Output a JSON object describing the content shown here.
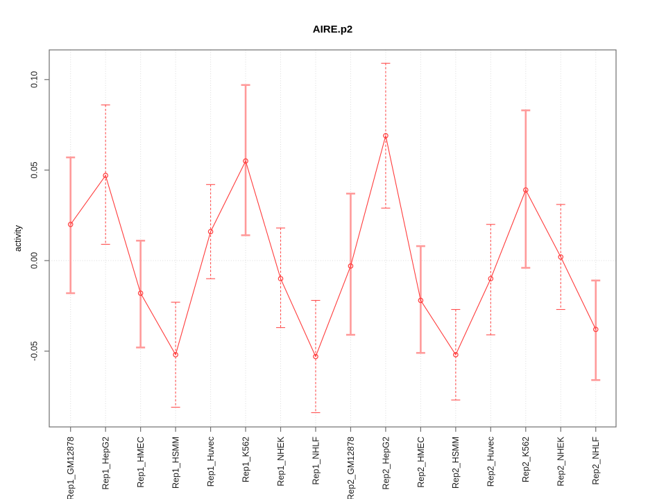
{
  "chart_data": {
    "type": "line",
    "title": "AIRE.p2",
    "xlabel": "",
    "ylabel": "activity",
    "legend": "none",
    "categories": [
      "Rep1_GM12878",
      "Rep1_HepG2",
      "Rep1_HMEC",
      "Rep1_HSMM",
      "Rep1_Huvec",
      "Rep1_K562",
      "Rep1_NHEK",
      "Rep1_NHLF",
      "Rep2_GM12878",
      "Rep2_HepG2",
      "Rep2_HMEC",
      "Rep2_HSMM",
      "Rep2_Huvec",
      "Rep2_K562",
      "Rep2_NHEK",
      "Rep2_NHLF"
    ],
    "series": [
      {
        "name": "activity",
        "values": [
          0.02,
          0.047,
          -0.018,
          -0.052,
          0.016,
          0.055,
          -0.01,
          -0.053,
          -0.003,
          0.069,
          -0.022,
          -0.052,
          -0.01,
          0.039,
          0.002,
          -0.038
        ],
        "error_low": [
          -0.018,
          0.009,
          -0.048,
          -0.081,
          -0.01,
          0.014,
          -0.037,
          -0.084,
          -0.041,
          0.029,
          -0.051,
          -0.077,
          -0.041,
          -0.004,
          -0.027,
          -0.066
        ],
        "error_high": [
          0.057,
          0.086,
          0.011,
          -0.023,
          0.042,
          0.097,
          0.018,
          -0.022,
          0.037,
          0.109,
          0.008,
          -0.027,
          0.02,
          0.083,
          0.031,
          -0.011
        ],
        "error_bar_styles": [
          "solid",
          "dashed",
          "solid",
          "dashed",
          "dashed",
          "solid",
          "dashed",
          "dashed",
          "solid",
          "dashed",
          "solid",
          "dashed",
          "dashed",
          "solid",
          "dashed",
          "solid"
        ]
      }
    ],
    "yticks": [
      -0.05,
      0.0,
      0.05,
      0.1
    ],
    "ytick_labels": [
      "-0.05",
      "0.00",
      "0.05",
      "0.10"
    ],
    "ylim": [
      -0.092,
      0.117
    ],
    "grid": {
      "vertical_dotted_per_category": true,
      "horizontal_dotted_zero_line": true
    },
    "marker": "open-circle",
    "colors": {
      "line": "#ff3b3b",
      "point": "#ff3b3b",
      "solid_error_bar": "#ff9a9a",
      "dashed_error_bar": "#ff4d4d",
      "grid": "#dadada",
      "axis": "#6f6f6f",
      "text": "#1a1a1a"
    }
  }
}
